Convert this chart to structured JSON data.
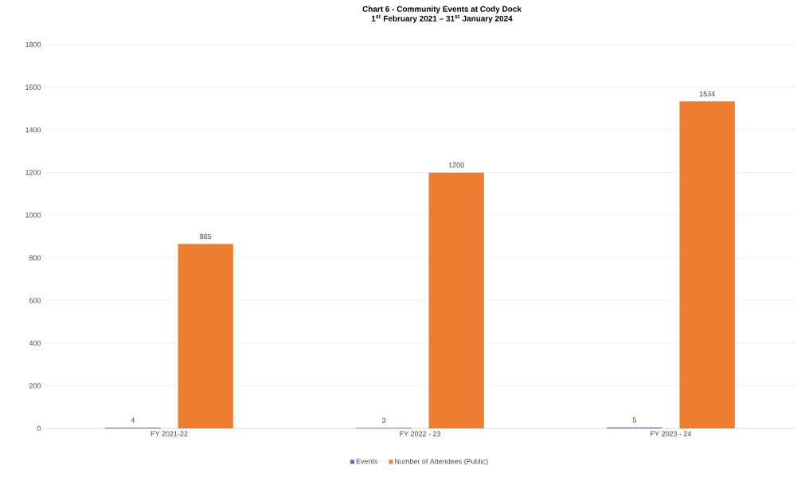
{
  "chart_data": {
    "type": "bar",
    "title": "Chart 6 - Community Events at Cody Dock",
    "subtitle": "1$^{st}$ February 2021 – 31$^{st}$ January 2024",
    "categories": [
      "FY 2021-22",
      "FY 2022 - 23",
      "FY 2023 - 24"
    ],
    "series": [
      {
        "name": "Events",
        "color": "#4472c4",
        "values": [
          4,
          3,
          5
        ]
      },
      {
        "name": "Number of Attendees (Public)",
        "color": "#ed7d31",
        "values": [
          865,
          1200,
          1534
        ]
      }
    ],
    "ylim": [
      0,
      1800
    ],
    "yticks": [
      0,
      200,
      400,
      600,
      800,
      1000,
      1200,
      1400,
      1600,
      1800
    ],
    "grid": "y",
    "legend": "bottom",
    "data_labels": true
  }
}
